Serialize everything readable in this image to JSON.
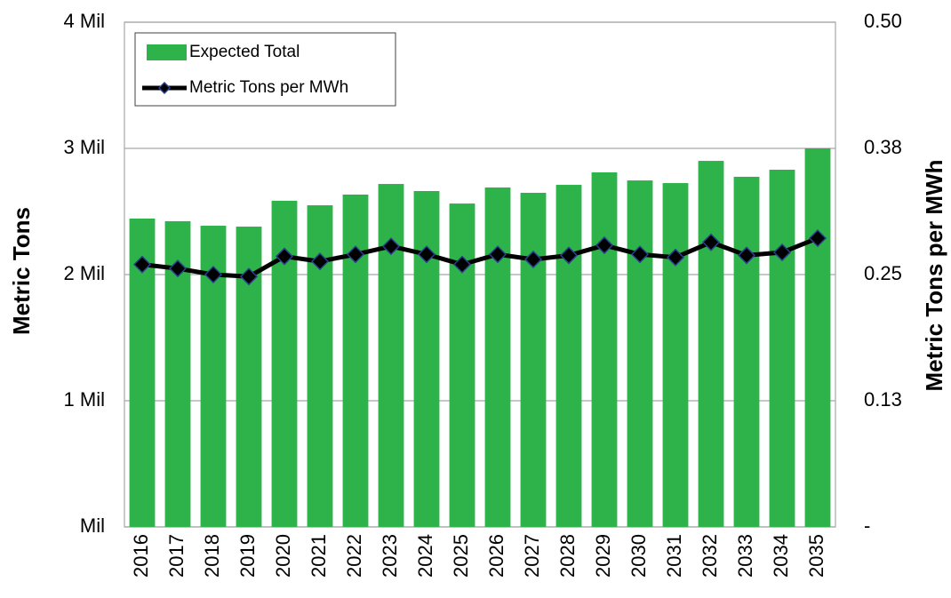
{
  "chart_data": {
    "type": "bar",
    "categories": [
      "2016",
      "2017",
      "2018",
      "2019",
      "2020",
      "2021",
      "2022",
      "2023",
      "2024",
      "2025",
      "2026",
      "2027",
      "2028",
      "2029",
      "2030",
      "2031",
      "2032",
      "2033",
      "2034",
      "2035"
    ],
    "series": [
      {
        "name": "Expected Total",
        "type": "bar",
        "color": "#2db34a",
        "values": [
          2.444,
          2.423,
          2.387,
          2.38,
          2.585,
          2.549,
          2.634,
          2.718,
          2.662,
          2.563,
          2.69,
          2.648,
          2.711,
          2.81,
          2.746,
          2.725,
          2.901,
          2.775,
          2.831,
          3.0
        ]
      },
      {
        "name": "Metric Tons per MWh",
        "type": "line",
        "axis": "y2",
        "color": "#000000",
        "marker_edge_color": "#2a3f8f",
        "values": [
          0.26,
          0.256,
          0.25,
          0.248,
          0.268,
          0.263,
          0.27,
          0.278,
          0.27,
          0.26,
          0.27,
          0.265,
          0.269,
          0.279,
          0.27,
          0.267,
          0.282,
          0.269,
          0.272,
          0.286
        ]
      }
    ],
    "ylabel": "Metric Tons",
    "y2label": "Metric Tons per MWh",
    "ylim": [
      0,
      4
    ],
    "yticks": [
      {
        "value": 0,
        "label": "Mil"
      },
      {
        "value": 1,
        "label": "1 Mil"
      },
      {
        "value": 2,
        "label": "2 Mil"
      },
      {
        "value": 3,
        "label": "3 Mil"
      },
      {
        "value": 4,
        "label": "4 Mil"
      }
    ],
    "y2lim": [
      0,
      0.5
    ],
    "y2ticks": [
      {
        "value": 0,
        "label": "-"
      },
      {
        "value": 0.125,
        "label": "0.13"
      },
      {
        "value": 0.25,
        "label": "0.25"
      },
      {
        "value": 0.375,
        "label": "0.38"
      },
      {
        "value": 0.5,
        "label": "0.50"
      }
    ],
    "grid": true,
    "legend": "upper left"
  }
}
